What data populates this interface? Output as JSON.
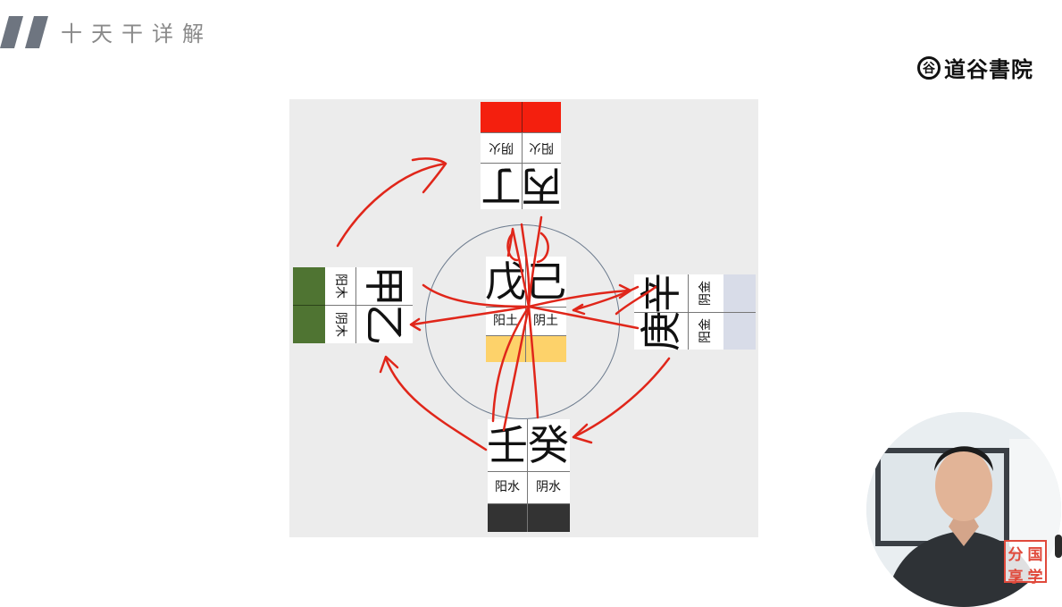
{
  "header": {
    "title": "十天干详解"
  },
  "brand": {
    "seal": "谷",
    "name": "道谷書院"
  },
  "diagram": {
    "south": {
      "yang_stem": "丙",
      "yin_stem": "丁",
      "yang_label": "阳火",
      "yin_label": "阴火",
      "color": "#f41f0e"
    },
    "east": {
      "yang_stem": "甲",
      "yin_stem": "乙",
      "yang_label": "阳木",
      "yin_label": "阴木",
      "color": "#4f7432"
    },
    "center": {
      "yang_stem": "戊",
      "yin_stem": "己",
      "yang_label": "阳土",
      "yin_label": "阴土",
      "color": "#fdd26a"
    },
    "west": {
      "yang_stem": "庚",
      "yin_stem": "辛",
      "yang_label": "阳金",
      "yin_label": "阴金",
      "color": "#d8dce8"
    },
    "north": {
      "yang_stem": "壬",
      "yin_stem": "癸",
      "yang_label": "阳水",
      "yin_label": "阴水",
      "color": "#333333"
    },
    "circle_color": "#6c7b8e",
    "annotation_color": "#e0261a"
  },
  "stamp": {
    "chars": [
      "分",
      "国",
      "享",
      "学"
    ],
    "color": "#e04a3c"
  }
}
